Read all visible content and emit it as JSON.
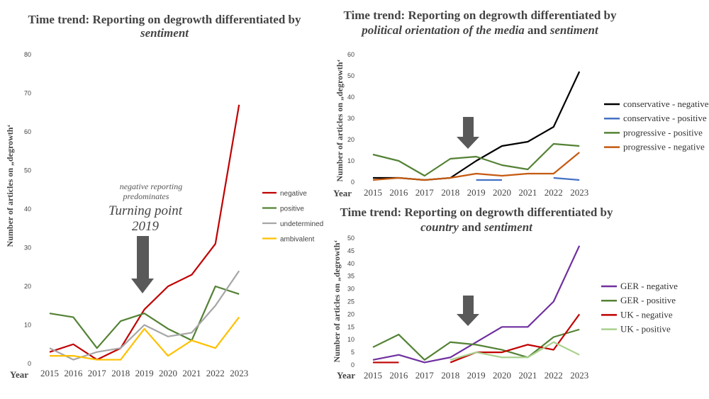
{
  "chart_data": [
    {
      "id": "chart1",
      "type": "line",
      "title_line1": "Time trend: Reporting on degrowth differentiated by",
      "title_line2": "sentiment",
      "ylabel": "Number of articles on „degrowth‘",
      "xlabel": "Year",
      "categories": [
        "2015",
        "2016",
        "2017",
        "2018",
        "2019",
        "2020",
        "2021",
        "2022",
        "2023"
      ],
      "ylim": [
        0,
        80
      ],
      "yticks": [
        0,
        10,
        20,
        30,
        40,
        50,
        60,
        70,
        80
      ],
      "legend_position": "right",
      "series": [
        {
          "name": "negative",
          "color": "#c00000",
          "values": [
            3,
            5,
            1,
            4,
            14,
            20,
            23,
            31,
            67
          ]
        },
        {
          "name": "positive",
          "color": "#548235",
          "values": [
            13,
            12,
            4,
            11,
            13,
            9,
            6,
            20,
            18
          ]
        },
        {
          "name": "undetermined",
          "color": "#a6a6a6",
          "values": [
            4,
            1,
            3,
            4,
            10,
            7,
            8,
            15,
            24
          ]
        },
        {
          "name": "ambivalent",
          "color": "#ffc000",
          "values": [
            2,
            2,
            1,
            1,
            9,
            2,
            6,
            4,
            12
          ]
        }
      ],
      "annotation_small_line1": "negative reporting",
      "annotation_small_line2": "predominates",
      "annotation_big_line1": "Turning point",
      "annotation_big_line2": "2019"
    },
    {
      "id": "chart2",
      "type": "line",
      "title_line1": "Time trend: Reporting on degrowth differentiated by",
      "title_line2_italic": "political orientation of the media",
      "title_line2_and": " and ",
      "title_line2_italic2": "sentiment",
      "ylabel": "Number of articles on „degrowth‘",
      "xlabel": "Year",
      "categories": [
        "2015",
        "2016",
        "2017",
        "2018",
        "2019",
        "2020",
        "2021",
        "2022",
        "2023"
      ],
      "ylim": [
        0,
        60
      ],
      "yticks": [
        0,
        10,
        20,
        30,
        40,
        50,
        60
      ],
      "legend_position": "right",
      "series": [
        {
          "name": "conservative - negative",
          "color": "#000000",
          "values": [
            2,
            2,
            1,
            2,
            10,
            17,
            19,
            26,
            52
          ]
        },
        {
          "name": "conservative - positive",
          "color": "#4472c4",
          "values": [
            null,
            2,
            null,
            null,
            1,
            1,
            null,
            2,
            1
          ]
        },
        {
          "name": "progressive - positive",
          "color": "#548235",
          "values": [
            13,
            10,
            3,
            11,
            12,
            8,
            6,
            18,
            17
          ]
        },
        {
          "name": "progressive - negative",
          "color": "#c55a11",
          "values": [
            1,
            2,
            1,
            2,
            4,
            3,
            4,
            4,
            14
          ]
        }
      ]
    },
    {
      "id": "chart3",
      "type": "line",
      "title_line1": "Time trend: Reporting on degrowth differentiated by",
      "title_line2_italic": "country",
      "title_line2_and": " and ",
      "title_line2_italic2": "sentiment",
      "ylabel": "Number of articles on „degrowth‘",
      "xlabel": "Year",
      "categories": [
        "2015",
        "2016",
        "2017",
        "2018",
        "2019",
        "2020",
        "2021",
        "2022",
        "2023"
      ],
      "ylim": [
        0,
        50
      ],
      "yticks": [
        0,
        5,
        10,
        15,
        20,
        25,
        30,
        35,
        40,
        45,
        50
      ],
      "legend_position": "right",
      "series": [
        {
          "name": "GER - negative",
          "color": "#7030a0",
          "values": [
            2,
            4,
            1,
            3,
            9,
            15,
            15,
            25,
            47
          ]
        },
        {
          "name": "GER - positive",
          "color": "#548235",
          "values": [
            7,
            12,
            2,
            9,
            8,
            6,
            3,
            11,
            14
          ]
        },
        {
          "name": "UK - negative",
          "color": "#c00000",
          "values": [
            1,
            1,
            null,
            1,
            5,
            5,
            8,
            6,
            20
          ]
        },
        {
          "name": "UK - positive",
          "color": "#a9d18e",
          "values": [
            null,
            null,
            null,
            2,
            5,
            3,
            3,
            9,
            4
          ]
        }
      ]
    }
  ]
}
